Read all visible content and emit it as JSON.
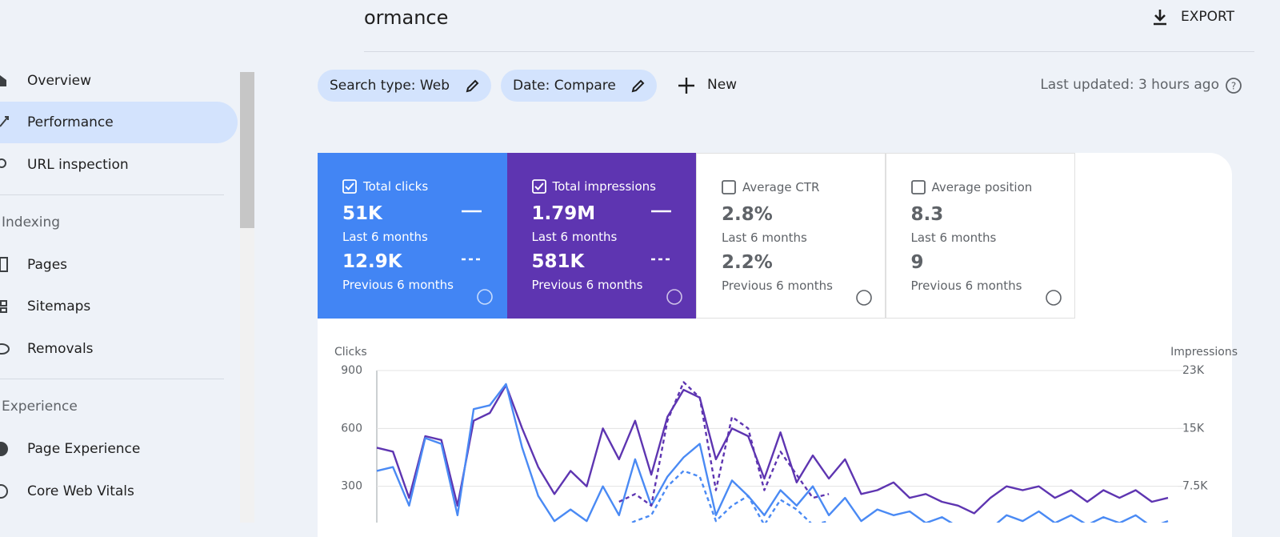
{
  "header": {
    "title": "ormance",
    "export": "EXPORT"
  },
  "sidebar": {
    "top": [
      "Overview",
      "Performance",
      "URL inspection"
    ],
    "indexing": {
      "title": "Indexing",
      "items": [
        "Pages",
        "Sitemaps",
        "Removals"
      ]
    },
    "experience": {
      "title": "Experience",
      "items": [
        "Page Experience",
        "Core Web Vitals"
      ]
    }
  },
  "filters": {
    "search_type": "Search type: Web",
    "date": "Date: Compare",
    "new": "New",
    "last_updated": "Last updated: 3 hours ago"
  },
  "metrics": [
    {
      "title": "Total clicks",
      "current": "51K",
      "current_period": "Last 6 months",
      "previous": "12.9K",
      "previous_period": "Previous 6 months",
      "checked": true,
      "color": "#4285f4"
    },
    {
      "title": "Total impressions",
      "current": "1.79M",
      "current_period": "Last 6 months",
      "previous": "581K",
      "previous_period": "Previous 6 months",
      "checked": true,
      "color": "#5e35b1"
    },
    {
      "title": "Average CTR",
      "current": "2.8%",
      "current_period": "Last 6 months",
      "previous": "2.2%",
      "previous_period": "Previous 6 months",
      "checked": false
    },
    {
      "title": "Average position",
      "current": "8.3",
      "current_period": "Last 6 months",
      "previous": "9",
      "previous_period": "Previous 6 months",
      "checked": false
    }
  ],
  "chart_data": {
    "type": "line",
    "y_label": "Clicks",
    "y2_label": "Impressions",
    "ylim": [
      0,
      900
    ],
    "yticks": [
      300,
      600,
      900
    ],
    "y2lim": [
      0,
      22500
    ],
    "y2ticks": [
      {
        "value": 7500,
        "label": "7.5K"
      },
      {
        "value": 15000,
        "label": "15K"
      },
      {
        "value": 22500,
        "label": "23K"
      }
    ],
    "grid": true,
    "categories": [
      null,
      null,
      null,
      null,
      null,
      null,
      null,
      null,
      null,
      null,
      null,
      null,
      null,
      null,
      null,
      null,
      null,
      null,
      null,
      null,
      null,
      null,
      null,
      null,
      null,
      null,
      null,
      null,
      null,
      null,
      null,
      null,
      null,
      null,
      null,
      null,
      null,
      null,
      null,
      null,
      null,
      null,
      null,
      null,
      null,
      null,
      null,
      null,
      null,
      null
    ],
    "series": [
      {
        "color": "#5e35b1",
        "axis": "y2",
        "dashed": false,
        "values": [
          12500,
          12000,
          6000,
          14000,
          13500,
          5000,
          16000,
          17000,
          20600,
          15000,
          10000,
          6500,
          9500,
          7500,
          15000,
          11000,
          16000,
          9000,
          16500,
          20000,
          19000,
          11000,
          15000,
          14000,
          8500,
          14500,
          8000,
          11500,
          8500,
          11000,
          6500,
          7000,
          8000,
          6000,
          6500,
          5500,
          5000,
          4000,
          6000,
          7500,
          7000,
          7500,
          6000,
          7000,
          5500,
          7000,
          6000,
          7000,
          5500,
          6000
        ]
      },
      {
        "color": "#4a8af4",
        "axis": "y",
        "dashed": false,
        "values": [
          380,
          400,
          200,
          550,
          520,
          150,
          700,
          720,
          830,
          500,
          250,
          120,
          180,
          120,
          300,
          150,
          440,
          200,
          350,
          450,
          520,
          150,
          330,
          250,
          150,
          280,
          200,
          300,
          150,
          240,
          120,
          180,
          150,
          170,
          110,
          140,
          90,
          60,
          80,
          150,
          120,
          170,
          110,
          150,
          100,
          140,
          110,
          150,
          90,
          120
        ]
      },
      {
        "color": "#5e35b1",
        "axis": "y2",
        "dashed": true,
        "values": [
          null,
          null,
          null,
          null,
          null,
          null,
          null,
          null,
          null,
          null,
          null,
          null,
          null,
          null,
          null,
          5500,
          6500,
          5000,
          16000,
          21000,
          19000,
          7000,
          16500,
          15000,
          7000,
          12000,
          9000,
          6000,
          6500,
          null,
          null,
          null,
          null,
          null,
          null,
          null,
          null,
          null,
          null,
          null,
          null,
          null,
          null,
          null,
          null,
          null,
          null,
          null,
          null,
          null
        ]
      },
      {
        "color": "#4a8af4",
        "axis": "y",
        "dashed": true,
        "values": [
          null,
          null,
          null,
          null,
          null,
          null,
          null,
          null,
          null,
          null,
          null,
          null,
          null,
          null,
          null,
          80,
          120,
          150,
          300,
          380,
          350,
          120,
          200,
          250,
          100,
          230,
          180,
          100,
          120,
          null,
          null,
          null,
          null,
          null,
          null,
          null,
          null,
          null,
          null,
          null,
          null,
          null,
          null,
          null,
          null,
          null,
          null,
          null,
          null,
          null
        ]
      }
    ]
  }
}
